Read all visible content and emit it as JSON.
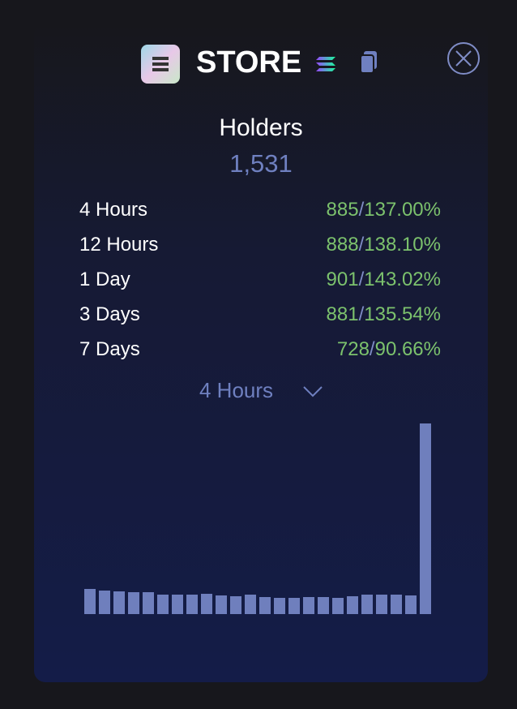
{
  "header": {
    "title": "STORE"
  },
  "holders": {
    "label": "Holders",
    "value": "1,531"
  },
  "stats": {
    "separator": "/",
    "rows": [
      {
        "label": "4 Hours",
        "count": "885",
        "percent": "137.00%"
      },
      {
        "label": "12 Hours",
        "count": "888",
        "percent": "138.10%"
      },
      {
        "label": "1 Day",
        "count": "901",
        "percent": "143.02%"
      },
      {
        "label": "3 Days",
        "count": "881",
        "percent": "135.54%"
      },
      {
        "label": "7 Days",
        "count": "728",
        "percent": "90.66%"
      }
    ]
  },
  "dropdown": {
    "selected": "4 Hours"
  },
  "chart_data": {
    "type": "bar",
    "color": "#6f7fbd",
    "values": [
      31,
      29,
      28,
      27,
      27,
      24,
      24,
      24,
      25,
      23,
      22,
      24,
      21,
      20,
      20,
      21,
      21,
      20,
      22,
      24,
      24,
      24,
      23,
      235
    ]
  }
}
